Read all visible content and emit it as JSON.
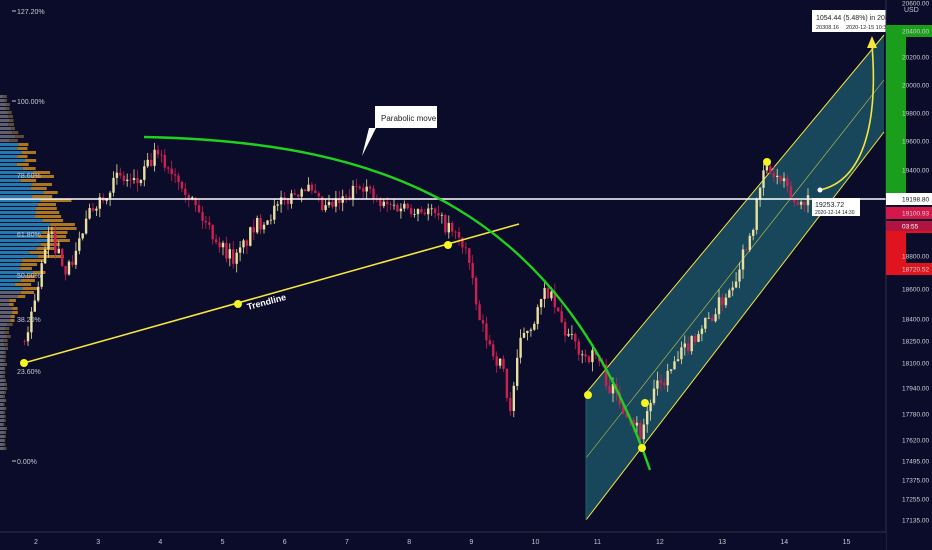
{
  "chart_data": {
    "type": "candlestick",
    "symbol_currency": "USD",
    "x_ticks": [
      "2",
      "3",
      "4",
      "5",
      "6",
      "7",
      "8",
      "9",
      "10",
      "11",
      "12",
      "13",
      "14",
      "15"
    ],
    "y_ticks": [
      20600,
      20400,
      20200,
      20000,
      19800,
      19600,
      19400,
      19198.8,
      19100.93,
      19000,
      18800,
      18720.52,
      18600,
      18400,
      18250,
      18100,
      17940,
      17780,
      17620,
      17495,
      17375,
      17255,
      17135
    ],
    "y_tick_labels": [
      "20600.00",
      "20400.00",
      "20200.00",
      "20000.00",
      "19800.00",
      "19600.00",
      "19400.00",
      "19198.80",
      "19100.93",
      "19000.00",
      "18800.00",
      "18720.52",
      "18600.00",
      "18400.00",
      "18250.00",
      "18100.00",
      "17940.00",
      "17780.00",
      "17620.00",
      "17495.00",
      "17375.00",
      "17255.00",
      "17135.00"
    ],
    "price_badges": [
      {
        "value": "20400.00",
        "color": "#1b9e1b"
      },
      {
        "value": "19198.80",
        "color": "#ffffff"
      },
      {
        "value": "19100.93",
        "color": "#d4184a"
      },
      {
        "value": "19000.00",
        "color": "#e0141e"
      },
      {
        "value": "18720.52",
        "color": "#e0141e"
      }
    ],
    "countdown": "03:55",
    "fib_levels": [
      {
        "label": "127.20%"
      },
      {
        "label": "100.00%"
      },
      {
        "label": "78.60%"
      },
      {
        "label": "61.80%"
      },
      {
        "label": "50.00%"
      },
      {
        "label": "38.20%"
      },
      {
        "label": "23.60%"
      },
      {
        "label": "0.00%"
      }
    ],
    "annotations": {
      "parabolic_callout": "Parabolic move",
      "trendline_label": "Trendline",
      "measure_line1": "1054.44 (5.48%) in 20h",
      "measure_line2_left": "20308.16",
      "measure_line2_right": "2020-12-15  10:30",
      "price_point_value": "19253.72",
      "price_point_time": "2020-12-14 14:30"
    },
    "colors": {
      "background": "#0b0b2a",
      "candle_up": "#e8e0a0",
      "candle_down": "#cc2050",
      "trendline": "#f5e63c",
      "parabolic_curve": "#1fd11f",
      "channel_fill": "#1e5c6e",
      "channel_line": "#f5e63c",
      "volume_profile_up": "#2a8ec8",
      "volume_profile_down": "#c88a1e"
    }
  }
}
